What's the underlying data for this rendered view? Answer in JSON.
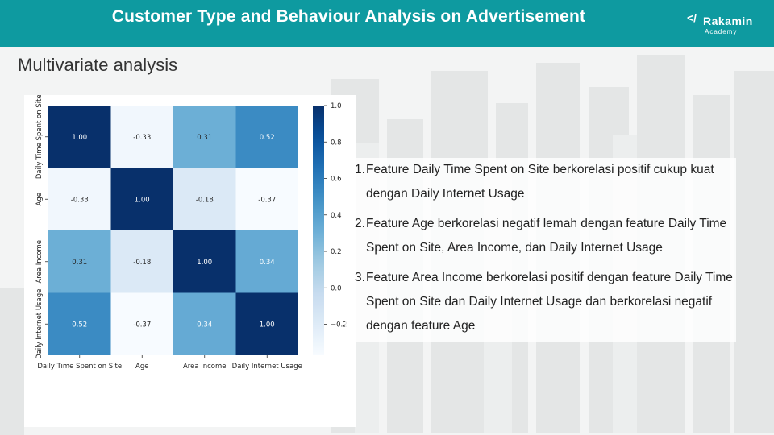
{
  "header": {
    "title": "Customer Type and Behaviour Analysis on Advertisement",
    "brand": "Rakamin",
    "brand_sub": "Academy",
    "brand_mark": "</",
    "bg_color": "#0e9aa0"
  },
  "subtitle": "Multivariate analysis",
  "chart_data": {
    "type": "heatmap",
    "title": "",
    "xlabel": "",
    "ylabel": "",
    "x_labels": [
      "Daily Time Spent on Site",
      "Age",
      "Area Income",
      "Daily Internet Usage"
    ],
    "y_labels": [
      "Daily Time Spent on Site",
      "Age",
      "Area Income",
      "Daily Internet Usage"
    ],
    "values": [
      [
        1.0,
        -0.33,
        0.31,
        0.52
      ],
      [
        -0.33,
        1.0,
        -0.18,
        -0.37
      ],
      [
        0.31,
        -0.18,
        1.0,
        0.34
      ],
      [
        0.52,
        -0.37,
        0.34,
        1.0
      ]
    ],
    "cell_labels": [
      [
        "1.00",
        "-0.33",
        "0.31",
        "0.52"
      ],
      [
        "-0.33",
        "1.00",
        "-0.18",
        "-0.37"
      ],
      [
        "0.31",
        "-0.18",
        "1.00",
        "0.34"
      ],
      [
        "0.52",
        "-0.37",
        "0.34",
        "1.00"
      ]
    ],
    "colormap": "Blues",
    "vmin": -0.37,
    "vmax": 1.0,
    "colorbar_ticks": [
      1.0,
      0.8,
      0.6,
      0.4,
      0.2,
      0.0,
      -0.2
    ],
    "colorbar_tick_labels": [
      "1.0",
      "0.8",
      "0.6",
      "0.4",
      "0.2",
      "0.0",
      "−0.2"
    ]
  },
  "notes": [
    {
      "num": "1.",
      "text": "Feature Daily Time Spent on Site berkorelasi positif cukup kuat dengan Daily Internet Usage"
    },
    {
      "num": "2.",
      "text": "Feature Age berkorelasi negatif lemah dengan feature Daily Time Spent on Site, Area Income, dan Daily Internet Usage"
    },
    {
      "num": "3.",
      "text": "Feature Area Income berkorelasi positif dengan feature Daily Time Spent on Site dan Daily Internet Usage dan berkorelasi negatif dengan feature Age"
    }
  ]
}
